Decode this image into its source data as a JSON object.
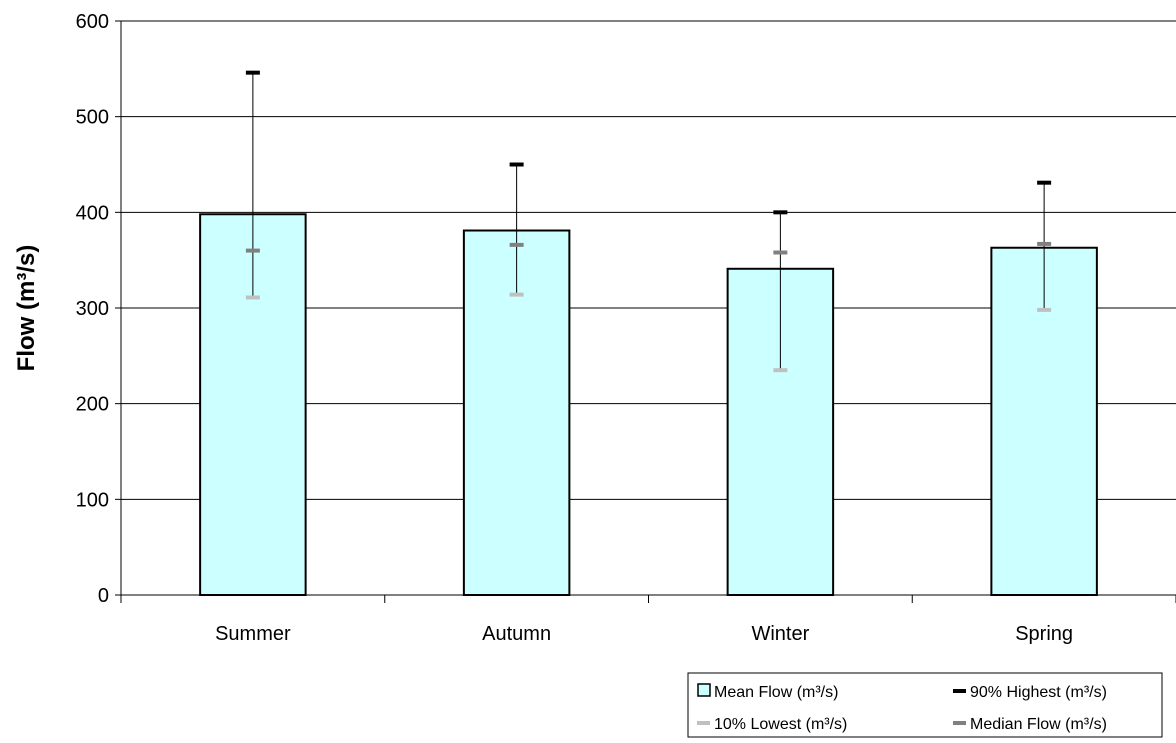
{
  "chart_data": {
    "type": "bar",
    "title": "",
    "xlabel": "",
    "ylabel": "Flow (m³/s)",
    "ylim": [
      0,
      600
    ],
    "yticks": [
      0,
      100,
      200,
      300,
      400,
      500,
      600
    ],
    "grid": true,
    "categories": [
      "Summer",
      "Autumn",
      "Winter",
      "Spring"
    ],
    "series": [
      {
        "name": "Mean Flow (m³/s)",
        "kind": "bar",
        "color": "#ccffff",
        "values": [
          398,
          381,
          341,
          363
        ]
      },
      {
        "name": "90% Highest (m³/s)",
        "kind": "marker",
        "color": "#000000",
        "values": [
          546,
          450,
          400,
          431
        ]
      },
      {
        "name": "10% Lowest (m³/s)",
        "kind": "marker",
        "color": "#c0c0c0",
        "values": [
          311,
          314,
          235,
          298
        ]
      },
      {
        "name": "Median Flow (m³/s)",
        "kind": "marker",
        "color": "#808080",
        "values": [
          360,
          366,
          358,
          367
        ]
      }
    ],
    "legend_position": "bottom-right"
  }
}
